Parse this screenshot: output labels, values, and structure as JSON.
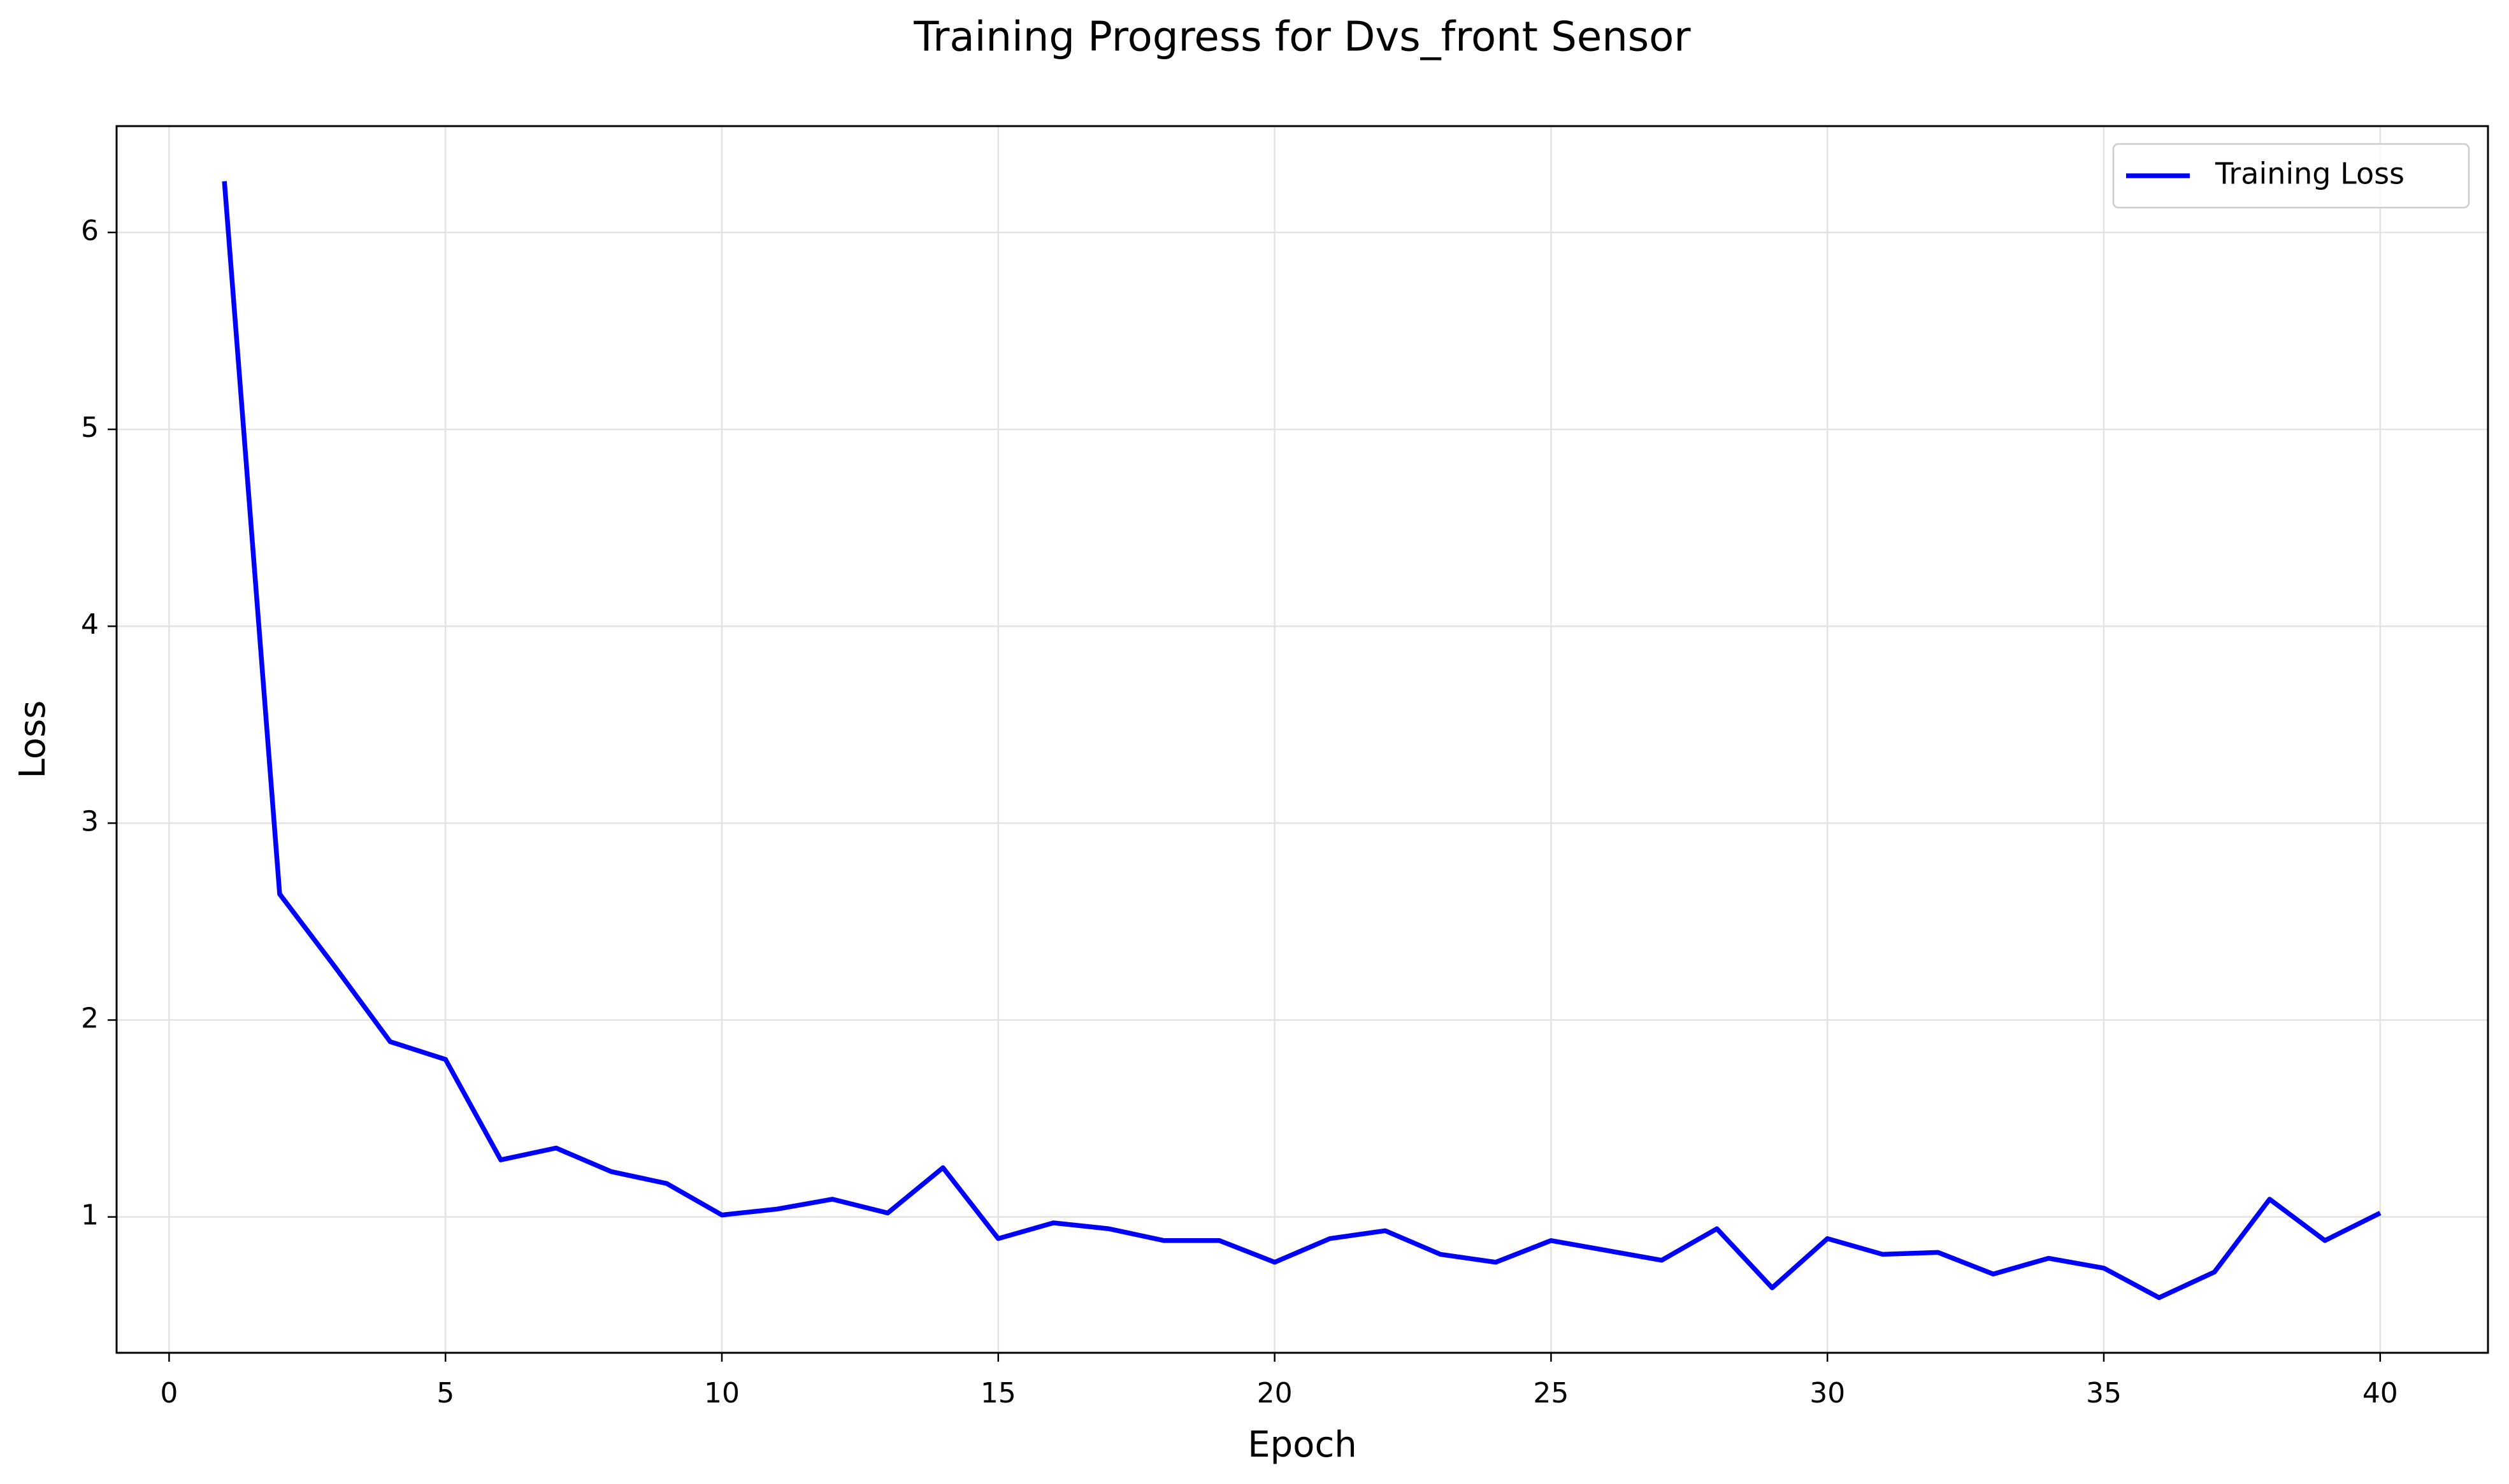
{
  "chart_data": {
    "type": "line",
    "title": "Training Progress for Dvs_front Sensor",
    "x_label": "Epoch",
    "y_label": "Loss",
    "x": [
      1,
      2,
      3,
      4,
      5,
      6,
      7,
      8,
      9,
      10,
      11,
      12,
      13,
      14,
      15,
      16,
      17,
      18,
      19,
      20,
      21,
      22,
      23,
      24,
      25,
      26,
      27,
      28,
      29,
      30,
      31,
      32,
      33,
      34,
      35,
      36,
      37,
      38,
      39,
      40
    ],
    "series": [
      {
        "name": "Training Loss",
        "color": "#0000ff",
        "values": [
          6.26,
          2.64,
          2.27,
          1.89,
          1.8,
          1.29,
          1.35,
          1.23,
          1.17,
          1.01,
          1.04,
          1.09,
          1.02,
          1.25,
          0.89,
          0.97,
          0.94,
          0.88,
          0.88,
          0.77,
          0.89,
          0.93,
          0.81,
          0.77,
          0.88,
          0.83,
          0.78,
          0.94,
          0.64,
          0.89,
          0.81,
          0.82,
          0.71,
          0.79,
          0.74,
          0.59,
          0.72,
          1.09,
          0.88,
          1.02
        ]
      }
    ],
    "xlim": [
      -0.95,
      41.95
    ],
    "ylim": [
      0.31,
      6.54
    ],
    "xticks": [
      0,
      5,
      10,
      15,
      20,
      25,
      30,
      35,
      40
    ],
    "yticks": [
      1,
      2,
      3,
      4,
      5,
      6
    ],
    "grid": true,
    "legend": "upper right"
  }
}
